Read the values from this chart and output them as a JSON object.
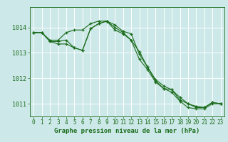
{
  "background_color": "#cce8e8",
  "grid_color": "#ffffff",
  "line_color": "#1a6b1a",
  "marker": "+",
  "xlabel": "Graphe pression niveau de la mer (hPa)",
  "xlim": [
    -0.5,
    23.5
  ],
  "ylim": [
    1010.5,
    1014.8
  ],
  "yticks": [
    1011,
    1012,
    1013,
    1014
  ],
  "xticks": [
    0,
    1,
    2,
    3,
    4,
    5,
    6,
    7,
    8,
    9,
    10,
    11,
    12,
    13,
    14,
    15,
    16,
    17,
    18,
    19,
    20,
    21,
    22,
    23
  ],
  "series1_x": [
    0,
    1,
    2,
    3,
    4,
    5,
    6,
    7,
    8,
    9,
    10,
    11,
    12,
    13,
    14,
    15,
    16,
    17,
    18,
    19,
    20,
    21,
    22,
    23
  ],
  "series1_y": [
    1013.8,
    1013.8,
    1013.5,
    1013.5,
    1013.8,
    1013.9,
    1013.9,
    1014.15,
    1014.25,
    1014.25,
    1014.1,
    1013.85,
    1013.75,
    1012.95,
    1012.45,
    1011.95,
    1011.7,
    1011.55,
    1011.15,
    1011.0,
    1010.9,
    1010.85,
    1011.05,
    1011.0
  ],
  "series2_x": [
    0,
    1,
    2,
    3,
    4,
    5,
    6,
    7,
    8,
    9,
    10,
    11,
    12,
    13,
    14,
    15,
    16,
    17,
    18,
    19,
    20,
    21,
    22,
    23
  ],
  "series2_y": [
    1013.8,
    1013.8,
    1013.45,
    1013.45,
    1013.5,
    1013.2,
    1013.1,
    1013.95,
    1014.15,
    1014.25,
    1013.9,
    1013.75,
    1013.5,
    1013.05,
    1012.45,
    1011.9,
    1011.6,
    1011.55,
    1011.25,
    1011.0,
    1010.85,
    1010.85,
    1011.05,
    1011.0
  ],
  "series3_x": [
    0,
    1,
    2,
    3,
    4,
    5,
    6,
    7,
    8,
    9,
    10,
    11,
    12,
    13,
    14,
    15,
    16,
    17,
    18,
    19,
    20,
    21,
    22,
    23
  ],
  "series3_y": [
    1013.8,
    1013.8,
    1013.45,
    1013.35,
    1013.35,
    1013.2,
    1013.1,
    1013.95,
    1014.15,
    1014.25,
    1014.0,
    1013.8,
    1013.5,
    1012.75,
    1012.35,
    1011.85,
    1011.6,
    1011.45,
    1011.1,
    1010.85,
    1010.8,
    1010.8,
    1011.0,
    1011.0
  ],
  "tick_fontsize": 5.5,
  "xlabel_fontsize": 6.5
}
